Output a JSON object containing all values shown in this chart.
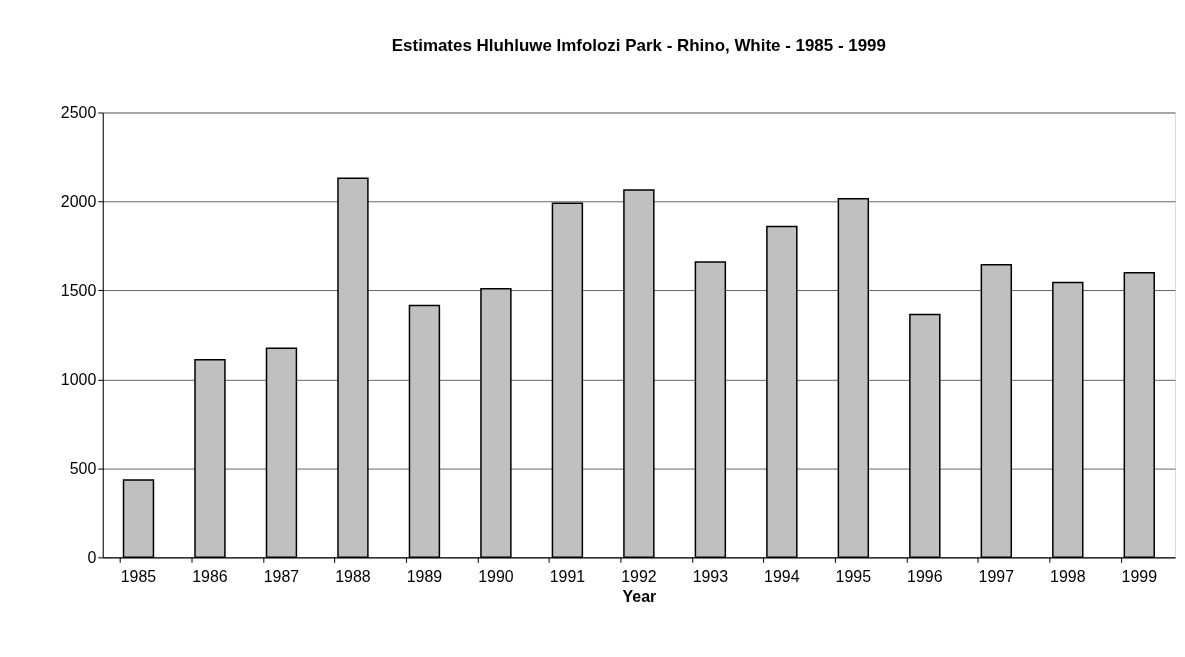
{
  "chart_data": {
    "type": "bar",
    "title": "Estimates Hluhluwe Imfolozi Park - Rhino, White - 1985 - 1999",
    "xlabel": "Year",
    "categories": [
      "1985",
      "1986",
      "1987",
      "1988",
      "1989",
      "1990",
      "1991",
      "1992",
      "1993",
      "1994",
      "1995",
      "1996",
      "1997",
      "1998",
      "1999"
    ],
    "values": [
      435,
      1110,
      1175,
      2130,
      1415,
      1510,
      1990,
      2065,
      1660,
      1860,
      2015,
      1365,
      1645,
      1545,
      1600
    ],
    "color": "#c0c0c0",
    "ylim": [
      0,
      2500
    ],
    "yticks": [
      0,
      500,
      1000,
      1500,
      2000,
      2500
    ],
    "grid": "y"
  }
}
